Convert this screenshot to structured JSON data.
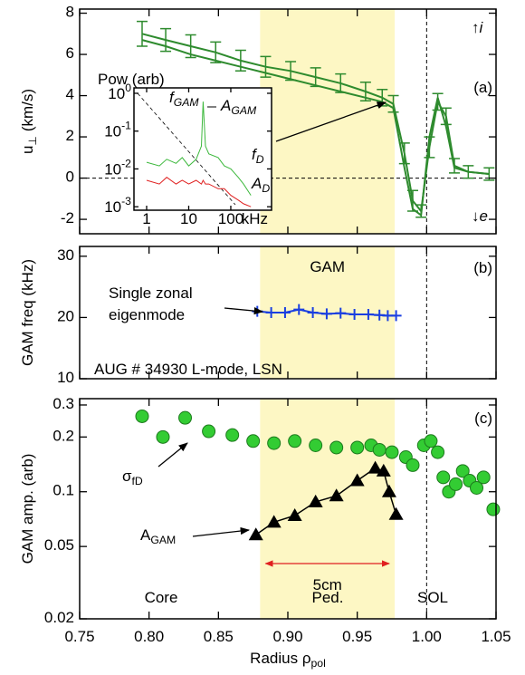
{
  "chart_data": [
    {
      "type": "line",
      "panel_label": "(a)",
      "ylabel": "u_{⊥} (km/s)",
      "annotations": [
        "↑i",
        "↓e"
      ],
      "x": [
        0.795,
        0.812,
        0.83,
        0.848,
        0.866,
        0.884,
        0.902,
        0.92,
        0.938,
        0.956,
        0.968,
        0.976,
        0.984,
        0.99,
        0.996,
        1.002,
        1.008,
        1.014,
        1.02,
        1.03,
        1.045
      ],
      "series": [
        {
          "color": "#2e8b2e",
          "values": [
            7.0,
            6.7,
            6.4,
            6.1,
            5.7,
            5.4,
            5.2,
            4.9,
            4.6,
            4.2,
            3.9,
            3.6,
            1.2,
            -1.1,
            -1.6,
            1.5,
            3.7,
            3.0,
            0.6,
            0.3,
            0.2
          ],
          "errors": [
            0.6,
            0.55,
            0.55,
            0.5,
            0.5,
            0.5,
            0.45,
            0.45,
            0.45,
            0.45,
            0.4,
            0.4,
            0.5,
            0.5,
            0.3,
            0.5,
            0.4,
            0.4,
            0.35,
            0.3,
            0.3
          ]
        },
        {
          "color": "#2e8b2e",
          "values": [
            6.7,
            6.4,
            6.0,
            5.7,
            5.4,
            5.1,
            4.8,
            4.5,
            4.2,
            3.9,
            3.7,
            3.4,
            0.5,
            -1.5,
            -1.8,
            2.0,
            3.9,
            2.5,
            0.5,
            0.3,
            0.2
          ]
        }
      ],
      "xlim": [
        0.75,
        1.05
      ],
      "xticks": [
        0.75,
        0.8,
        0.85,
        0.9,
        0.95,
        1.0,
        1.05
      ],
      "ylim": [
        -2.7,
        8.2
      ],
      "yticks": [
        -2,
        0,
        2,
        4,
        6,
        8
      ],
      "hline": 0,
      "vline": 1.0,
      "span": [
        0.88,
        0.977
      ],
      "span_color": "#fdf7c4"
    },
    {
      "type": "line",
      "log_x": true,
      "log_y": true,
      "ylabel": "Pow (arb)",
      "xunit": "kHz",
      "x": [
        1,
        2,
        3,
        5,
        7,
        10,
        15,
        20,
        22,
        25,
        30,
        50,
        70,
        100,
        150,
        200,
        300
      ],
      "series": [
        {
          "name": "f_{D}",
          "color": "#3cb83c",
          "values": [
            0.015,
            0.012,
            0.018,
            0.014,
            0.02,
            0.012,
            0.018,
            0.04,
            0.6,
            0.04,
            0.025,
            0.02,
            0.012,
            0.01,
            0.006,
            0.004,
            0.002
          ]
        },
        {
          "name": "A_{D}",
          "color": "#e02020",
          "values": [
            0.005,
            0.004,
            0.006,
            0.004,
            0.005,
            0.004,
            0.005,
            0.004,
            0.005,
            0.004,
            0.004,
            0.003,
            0.003,
            0.002,
            0.0015,
            0.0012,
            0.001
          ]
        }
      ],
      "annotations": [
        {
          "text": "f_{GAM}",
          "color": "#1a3fe0"
        },
        {
          "text": "A_{GAM}",
          "color": "#000000"
        }
      ],
      "xlim": [
        0.5,
        930
      ],
      "xticks": [
        1,
        10,
        100
      ],
      "ylim": [
        0.00081,
        1.39
      ],
      "yticks": [
        {
          "value": 1,
          "label": "10^{0}"
        },
        {
          "value": 0.1,
          "label": "10^{-1}"
        },
        {
          "value": 0.01,
          "label": "10^{-2}"
        },
        {
          "value": 0.001,
          "label": "10^{-3}"
        }
      ]
    },
    {
      "type": "line",
      "marker": "plus",
      "panel_label": "(b)",
      "ylabel": "GAM freq (kHz)",
      "region_label": "GAM",
      "annotations": [
        "Single zonal",
        "eigenmode",
        "AUG # 34930 L-mode, LSN"
      ],
      "x": [
        0.878,
        0.888,
        0.898,
        0.908,
        0.918,
        0.928,
        0.938,
        0.948,
        0.958,
        0.966,
        0.972,
        0.978
      ],
      "series": [
        {
          "color": "#1a3fe0",
          "values": [
            21.0,
            20.8,
            20.8,
            21.3,
            20.8,
            20.6,
            20.7,
            20.5,
            20.5,
            20.4,
            20.3,
            20.3
          ]
        }
      ],
      "xlim": [
        0.75,
        1.05
      ],
      "xticks": [
        0.75,
        0.8,
        0.85,
        0.9,
        0.95,
        1.0,
        1.05
      ],
      "ylim": [
        10,
        31.6
      ],
      "yticks": [
        10,
        20,
        30
      ],
      "vline": 1.0,
      "span": [
        0.88,
        0.977
      ],
      "span_color": "#fdf7c4"
    },
    {
      "type": "scatter",
      "log_y": true,
      "panel_label": "(c)",
      "ylabel": "GAM amp. (arb)",
      "xlabel": "Radius ρ_{pol}",
      "series": [
        {
          "name": "σ_{fD}",
          "color": "#33cc33",
          "marker": "circle",
          "x": [
            0.795,
            0.81,
            0.826,
            0.843,
            0.86,
            0.875,
            0.89,
            0.905,
            0.92,
            0.935,
            0.95,
            0.96,
            0.966,
            0.975,
            0.985,
            0.99,
            0.998,
            1.003,
            1.008,
            1.012,
            1.016,
            1.021,
            1.026,
            1.031,
            1.036,
            1.041,
            1.048
          ],
          "values": [
            0.26,
            0.2,
            0.255,
            0.215,
            0.205,
            0.19,
            0.185,
            0.19,
            0.18,
            0.175,
            0.175,
            0.18,
            0.17,
            0.165,
            0.155,
            0.14,
            0.18,
            0.19,
            0.165,
            0.12,
            0.1,
            0.11,
            0.13,
            0.115,
            0.105,
            0.12,
            0.08
          ]
        },
        {
          "name": "A_{GAM}",
          "color": "#000000",
          "marker": "triangle",
          "connect": true,
          "x": [
            0.877,
            0.89,
            0.905,
            0.92,
            0.935,
            0.95,
            0.963,
            0.969,
            0.973,
            0.978
          ],
          "values": [
            0.058,
            0.068,
            0.074,
            0.088,
            0.095,
            0.115,
            0.135,
            0.13,
            0.1,
            0.075
          ]
        }
      ],
      "region_labels": [
        "Core",
        "Ped.",
        "SOL"
      ],
      "span_label": "5cm",
      "xlim": [
        0.75,
        1.05
      ],
      "xticks": [
        0.75,
        {
          "value": 0.8,
          "label": "0.80"
        },
        0.85,
        {
          "value": 0.9,
          "label": "0.90"
        },
        0.95,
        {
          "value": 1.0,
          "label": "1.00"
        },
        1.05
      ],
      "ylim": [
        0.02,
        0.325
      ],
      "yticks": [
        0.02,
        0.05,
        0.1,
        0.2,
        0.3
      ],
      "vline": 1.0,
      "span": [
        0.88,
        0.977
      ],
      "span_color": "#fdf7c4"
    }
  ]
}
